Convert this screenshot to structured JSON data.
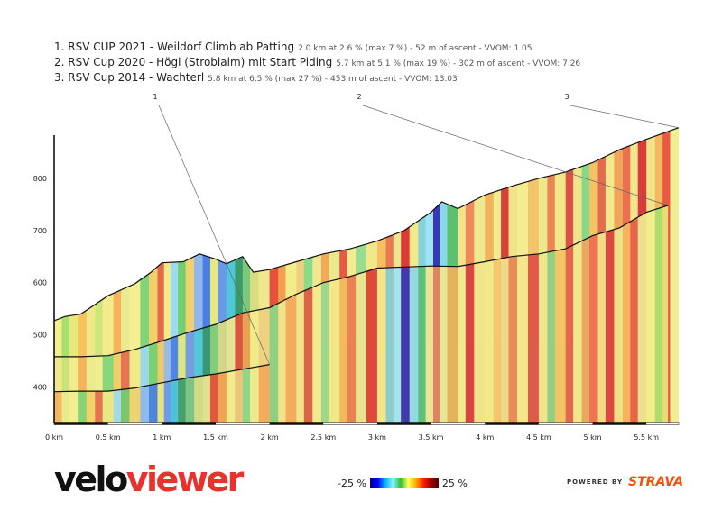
{
  "titles": [
    {
      "name": "1. RSV CUP 2021 - Weildorf Climb ab Patting",
      "stats": "2.0 km at 2.6 % (max 7 %) - 52 m of ascent - VVOM: 1.05"
    },
    {
      "name": "2. RSV Cup 2020 - Högl (Stroblalm) mit Start Piding",
      "stats": "5.7 km at 5.1 % (max 19 %) - 302 m of ascent - VVOM: 7.26"
    },
    {
      "name": "3. RSV Cup 2014 - Wachterl",
      "stats": "5.8 km at 6.5 % (max 27 %) - 453 m of ascent - VVOM: 13.03"
    }
  ],
  "legend": {
    "min_label": "-25 %",
    "max_label": "25 %"
  },
  "brand": {
    "velo": "velo",
    "viewer": "viewer"
  },
  "powered": {
    "by": "POWERED BY",
    "strava": "STRAVA"
  },
  "colors": {
    "brand_red": "#e8322d",
    "strava_orange": "#fc4c02"
  },
  "chart_data": {
    "type": "area",
    "xlabel": "",
    "ylabel": "",
    "x_unit": "km",
    "xlim": [
      0,
      5.8
    ],
    "ylim": [
      330,
      900
    ],
    "x_ticks": [
      {
        "v": 0,
        "label": "0 km"
      },
      {
        "v": 0.5,
        "label": "0.5 km"
      },
      {
        "v": 1,
        "label": "1 km"
      },
      {
        "v": 1.5,
        "label": "1.5 km"
      },
      {
        "v": 2,
        "label": "2 km"
      },
      {
        "v": 2.5,
        "label": "2.5 km"
      },
      {
        "v": 3,
        "label": "3 km"
      },
      {
        "v": 3.5,
        "label": "3.5 km"
      },
      {
        "v": 4,
        "label": "4 km"
      },
      {
        "v": 4.5,
        "label": "4.5 km"
      },
      {
        "v": 5,
        "label": "5 km"
      },
      {
        "v": 5.5,
        "label": "5.5 km"
      }
    ],
    "y_ticks": [
      {
        "v": 400,
        "label": "400"
      },
      {
        "v": 500,
        "label": "500"
      },
      {
        "v": 600,
        "label": "600"
      },
      {
        "v": 700,
        "label": "700"
      },
      {
        "v": 800,
        "label": "800"
      }
    ],
    "series": [
      {
        "name": "1",
        "x": [
          0,
          0.25,
          0.5,
          0.75,
          1.0,
          1.25,
          1.5,
          1.75,
          2.0
        ],
        "y": [
          391,
          392,
          392,
          398,
          408,
          418,
          425,
          434,
          443
        ]
      },
      {
        "name": "2",
        "x": [
          0,
          0.25,
          0.5,
          0.75,
          1.0,
          1.25,
          1.5,
          1.75,
          2.0,
          2.25,
          2.5,
          2.75,
          3.0,
          3.25,
          3.5,
          3.75,
          4.0,
          4.25,
          4.5,
          4.75,
          5.0,
          5.25,
          5.5,
          5.7
        ],
        "y": [
          458,
          458,
          460,
          472,
          488,
          505,
          520,
          542,
          552,
          578,
          600,
          612,
          628,
          630,
          632,
          631,
          640,
          650,
          655,
          665,
          690,
          705,
          735,
          748
        ]
      },
      {
        "name": "3",
        "x": [
          0,
          0.1,
          0.25,
          0.5,
          0.75,
          0.9,
          1.0,
          1.2,
          1.35,
          1.5,
          1.6,
          1.75,
          1.85,
          2.0,
          2.25,
          2.5,
          2.75,
          3.0,
          3.25,
          3.5,
          3.6,
          3.75,
          4.0,
          4.25,
          4.5,
          4.75,
          5.0,
          5.25,
          5.5,
          5.8
        ],
        "y": [
          527,
          535,
          540,
          575,
          598,
          620,
          638,
          640,
          655,
          645,
          636,
          650,
          620,
          625,
          640,
          655,
          665,
          680,
          700,
          735,
          755,
          742,
          768,
          785,
          800,
          812,
          830,
          855,
          875,
          897
        ]
      }
    ],
    "annotations": [
      {
        "label": "1",
        "at_series": "1"
      },
      {
        "label": "2",
        "at_series": "2"
      },
      {
        "label": "3",
        "at_series": "3"
      }
    ],
    "gradient_stripes": [
      {
        "x0": 0,
        "x1": 0.07,
        "c": "#f3ef8c"
      },
      {
        "x0": 0.07,
        "x1": 0.14,
        "c": "#a8e070"
      },
      {
        "x0": 0.14,
        "x1": 0.22,
        "c": "#e8e87a"
      },
      {
        "x0": 0.22,
        "x1": 0.3,
        "c": "#f6c25a"
      },
      {
        "x0": 0.3,
        "x1": 0.38,
        "c": "#eeea8a"
      },
      {
        "x0": 0.38,
        "x1": 0.45,
        "c": "#cfe47a"
      },
      {
        "x0": 0.45,
        "x1": 0.55,
        "c": "#f2ec8e"
      },
      {
        "x0": 0.55,
        "x1": 0.62,
        "c": "#f4b35c"
      },
      {
        "x0": 0.62,
        "x1": 0.7,
        "c": "#ecea90"
      },
      {
        "x0": 0.7,
        "x1": 0.8,
        "c": "#f3ef92"
      },
      {
        "x0": 0.8,
        "x1": 0.88,
        "c": "#7fd67a"
      },
      {
        "x0": 0.88,
        "x1": 0.96,
        "c": "#f4d06a"
      },
      {
        "x0": 0.96,
        "x1": 1.02,
        "c": "#e46a4e"
      },
      {
        "x0": 1.02,
        "x1": 1.08,
        "c": "#f2ea86"
      },
      {
        "x0": 1.08,
        "x1": 1.15,
        "c": "#9fdaf0"
      },
      {
        "x0": 1.15,
        "x1": 1.22,
        "c": "#70d070"
      },
      {
        "x0": 1.22,
        "x1": 1.3,
        "c": "#f0d070"
      },
      {
        "x0": 1.3,
        "x1": 1.38,
        "c": "#8fb8ee"
      },
      {
        "x0": 1.38,
        "x1": 1.45,
        "c": "#4d7ee6"
      },
      {
        "x0": 1.45,
        "x1": 1.52,
        "c": "#e8e880"
      },
      {
        "x0": 1.52,
        "x1": 1.6,
        "c": "#6c98ea"
      },
      {
        "x0": 1.6,
        "x1": 1.68,
        "c": "#4ec8d8"
      },
      {
        "x0": 1.68,
        "x1": 1.75,
        "c": "#3a9a6a"
      },
      {
        "x0": 1.75,
        "x1": 1.82,
        "c": "#7cc87c"
      },
      {
        "x0": 1.82,
        "x1": 1.9,
        "c": "#dcdc80"
      },
      {
        "x0": 1.9,
        "x1": 2.0,
        "c": "#f0e890"
      },
      {
        "x0": 2.0,
        "x1": 2.08,
        "c": "#e8503a"
      },
      {
        "x0": 2.08,
        "x1": 2.15,
        "c": "#f0a050"
      },
      {
        "x0": 2.15,
        "x1": 2.25,
        "c": "#f2ec8a"
      },
      {
        "x0": 2.25,
        "x1": 2.32,
        "c": "#eed080"
      },
      {
        "x0": 2.32,
        "x1": 2.4,
        "c": "#88dc88"
      },
      {
        "x0": 2.4,
        "x1": 2.48,
        "c": "#f0e890"
      },
      {
        "x0": 2.48,
        "x1": 2.55,
        "c": "#f4a85a"
      },
      {
        "x0": 2.55,
        "x1": 2.65,
        "c": "#eee88c"
      },
      {
        "x0": 2.65,
        "x1": 2.72,
        "c": "#e45a44"
      },
      {
        "x0": 2.72,
        "x1": 2.8,
        "c": "#f4ec90"
      },
      {
        "x0": 2.8,
        "x1": 2.9,
        "c": "#9adc90"
      },
      {
        "x0": 2.9,
        "x1": 3.0,
        "c": "#f2e88a"
      },
      {
        "x0": 3.0,
        "x1": 3.08,
        "c": "#f6c060"
      },
      {
        "x0": 3.08,
        "x1": 3.15,
        "c": "#e87a50"
      },
      {
        "x0": 3.15,
        "x1": 3.22,
        "c": "#f0e490"
      },
      {
        "x0": 3.22,
        "x1": 3.3,
        "c": "#dc3c34"
      },
      {
        "x0": 3.3,
        "x1": 3.38,
        "c": "#f4ea8c"
      },
      {
        "x0": 3.38,
        "x1": 3.45,
        "c": "#86d2d8"
      },
      {
        "x0": 3.45,
        "x1": 3.52,
        "c": "#a0e4f4"
      },
      {
        "x0": 3.52,
        "x1": 3.58,
        "c": "#3838b8"
      },
      {
        "x0": 3.58,
        "x1": 3.65,
        "c": "#8ad8e8"
      },
      {
        "x0": 3.65,
        "x1": 3.75,
        "c": "#5cc070"
      },
      {
        "x0": 3.75,
        "x1": 3.82,
        "c": "#f2e48c"
      },
      {
        "x0": 3.82,
        "x1": 3.9,
        "c": "#f08a5a"
      },
      {
        "x0": 3.9,
        "x1": 4.0,
        "c": "#eee890"
      },
      {
        "x0": 4.0,
        "x1": 4.08,
        "c": "#f0b45c"
      },
      {
        "x0": 4.08,
        "x1": 4.15,
        "c": "#f2ea8e"
      },
      {
        "x0": 4.15,
        "x1": 4.22,
        "c": "#d84040"
      },
      {
        "x0": 4.22,
        "x1": 4.3,
        "c": "#f0e48a"
      },
      {
        "x0": 4.3,
        "x1": 4.4,
        "c": "#f3ec90"
      },
      {
        "x0": 4.4,
        "x1": 4.5,
        "c": "#f4c46a"
      },
      {
        "x0": 4.5,
        "x1": 4.58,
        "c": "#eee88c"
      },
      {
        "x0": 4.58,
        "x1": 4.65,
        "c": "#ec8456"
      },
      {
        "x0": 4.65,
        "x1": 4.75,
        "c": "#f2e88a"
      },
      {
        "x0": 4.75,
        "x1": 4.82,
        "c": "#e05048"
      },
      {
        "x0": 4.82,
        "x1": 4.9,
        "c": "#f0e48c"
      },
      {
        "x0": 4.9,
        "x1": 4.97,
        "c": "#88d888"
      },
      {
        "x0": 4.97,
        "x1": 5.05,
        "c": "#f4c264"
      },
      {
        "x0": 5.05,
        "x1": 5.12,
        "c": "#e46a50"
      },
      {
        "x0": 5.12,
        "x1": 5.2,
        "c": "#f2e88c"
      },
      {
        "x0": 5.2,
        "x1": 5.28,
        "c": "#f0a45c"
      },
      {
        "x0": 5.28,
        "x1": 5.35,
        "c": "#ec7050"
      },
      {
        "x0": 5.35,
        "x1": 5.42,
        "c": "#f2e68a"
      },
      {
        "x0": 5.42,
        "x1": 5.5,
        "c": "#d83c3c"
      },
      {
        "x0": 5.5,
        "x1": 5.58,
        "c": "#f0e48a"
      },
      {
        "x0": 5.58,
        "x1": 5.65,
        "c": "#f4b860"
      },
      {
        "x0": 5.65,
        "x1": 5.72,
        "c": "#e85a44"
      },
      {
        "x0": 5.72,
        "x1": 5.8,
        "c": "#f2ee96"
      }
    ]
  }
}
